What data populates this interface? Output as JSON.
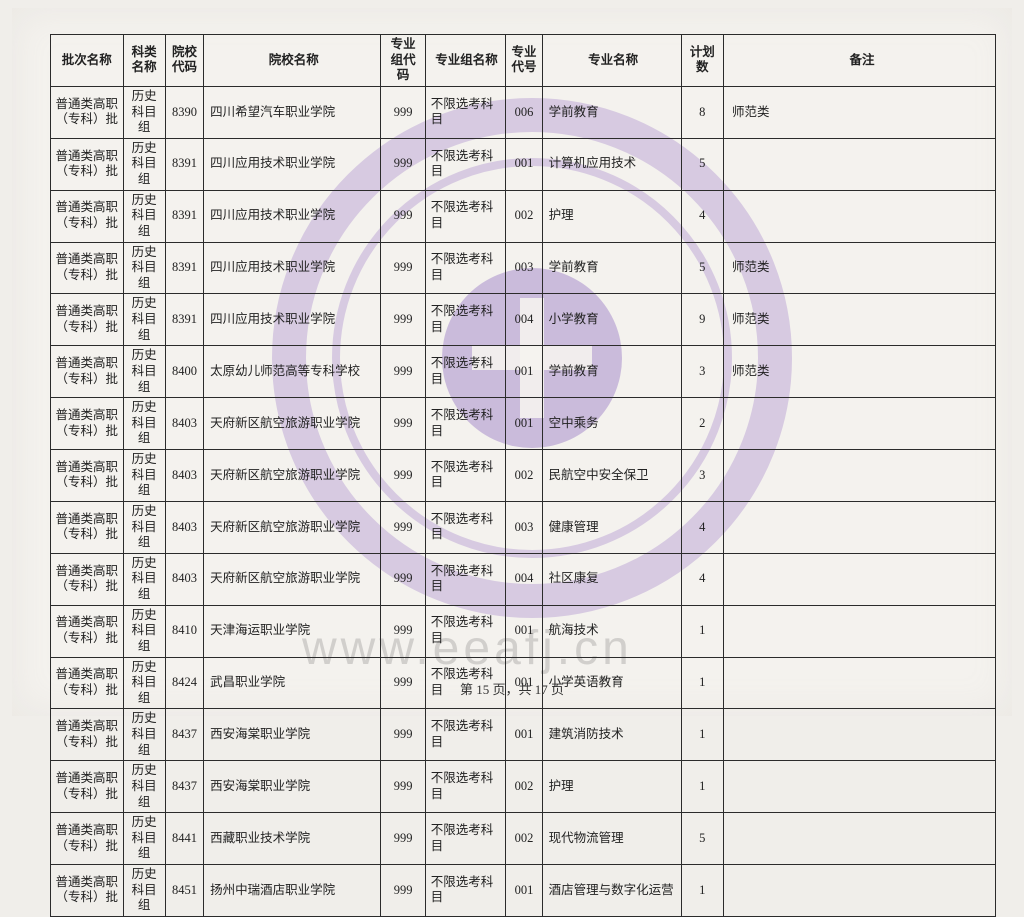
{
  "page": {
    "current": 15,
    "total": 17,
    "label_prefix": "第 ",
    "label_mid": " 页，共 ",
    "label_suffix": " 页"
  },
  "watermark": "www.eeafj.cn",
  "colors": {
    "border": "#2b2b2b",
    "text": "#222222",
    "paper": "#f4f2ee",
    "stamp": "#a082c8"
  },
  "headers": {
    "batch": "批次名称",
    "subject": "科类名称",
    "schcode": "院校代码",
    "schname": "院校名称",
    "grpcode": "专业组代码",
    "grpname": "专业组名称",
    "majcode": "专业代号",
    "majname": "专业名称",
    "plan": "计划数",
    "remark": "备注"
  },
  "rows": [
    {
      "batch": "普通类高职（专科）批",
      "subject": "历史科目组",
      "schcode": "8390",
      "schname": "四川希望汽车职业学院",
      "grpcode": "999",
      "grpname": "不限选考科目",
      "majcode": "006",
      "majname": "学前教育",
      "plan": "8",
      "remark": "师范类"
    },
    {
      "batch": "普通类高职（专科）批",
      "subject": "历史科目组",
      "schcode": "8391",
      "schname": "四川应用技术职业学院",
      "grpcode": "999",
      "grpname": "不限选考科目",
      "majcode": "001",
      "majname": "计算机应用技术",
      "plan": "5",
      "remark": ""
    },
    {
      "batch": "普通类高职（专科）批",
      "subject": "历史科目组",
      "schcode": "8391",
      "schname": "四川应用技术职业学院",
      "grpcode": "999",
      "grpname": "不限选考科目",
      "majcode": "002",
      "majname": "护理",
      "plan": "4",
      "remark": ""
    },
    {
      "batch": "普通类高职（专科）批",
      "subject": "历史科目组",
      "schcode": "8391",
      "schname": "四川应用技术职业学院",
      "grpcode": "999",
      "grpname": "不限选考科目",
      "majcode": "003",
      "majname": "学前教育",
      "plan": "5",
      "remark": "师范类"
    },
    {
      "batch": "普通类高职（专科）批",
      "subject": "历史科目组",
      "schcode": "8391",
      "schname": "四川应用技术职业学院",
      "grpcode": "999",
      "grpname": "不限选考科目",
      "majcode": "004",
      "majname": "小学教育",
      "plan": "9",
      "remark": "师范类"
    },
    {
      "batch": "普通类高职（专科）批",
      "subject": "历史科目组",
      "schcode": "8400",
      "schname": "太原幼儿师范高等专科学校",
      "grpcode": "999",
      "grpname": "不限选考科目",
      "majcode": "001",
      "majname": "学前教育",
      "plan": "3",
      "remark": "师范类"
    },
    {
      "batch": "普通类高职（专科）批",
      "subject": "历史科目组",
      "schcode": "8403",
      "schname": "天府新区航空旅游职业学院",
      "grpcode": "999",
      "grpname": "不限选考科目",
      "majcode": "001",
      "majname": "空中乘务",
      "plan": "2",
      "remark": ""
    },
    {
      "batch": "普通类高职（专科）批",
      "subject": "历史科目组",
      "schcode": "8403",
      "schname": "天府新区航空旅游职业学院",
      "grpcode": "999",
      "grpname": "不限选考科目",
      "majcode": "002",
      "majname": "民航空中安全保卫",
      "plan": "3",
      "remark": ""
    },
    {
      "batch": "普通类高职（专科）批",
      "subject": "历史科目组",
      "schcode": "8403",
      "schname": "天府新区航空旅游职业学院",
      "grpcode": "999",
      "grpname": "不限选考科目",
      "majcode": "003",
      "majname": "健康管理",
      "plan": "4",
      "remark": ""
    },
    {
      "batch": "普通类高职（专科）批",
      "subject": "历史科目组",
      "schcode": "8403",
      "schname": "天府新区航空旅游职业学院",
      "grpcode": "999",
      "grpname": "不限选考科目",
      "majcode": "004",
      "majname": "社区康复",
      "plan": "4",
      "remark": ""
    },
    {
      "batch": "普通类高职（专科）批",
      "subject": "历史科目组",
      "schcode": "8410",
      "schname": "天津海运职业学院",
      "grpcode": "999",
      "grpname": "不限选考科目",
      "majcode": "001",
      "majname": "航海技术",
      "plan": "1",
      "remark": ""
    },
    {
      "batch": "普通类高职（专科）批",
      "subject": "历史科目组",
      "schcode": "8424",
      "schname": "武昌职业学院",
      "grpcode": "999",
      "grpname": "不限选考科目",
      "majcode": "001",
      "majname": "小学英语教育",
      "plan": "1",
      "remark": ""
    },
    {
      "batch": "普通类高职（专科）批",
      "subject": "历史科目组",
      "schcode": "8437",
      "schname": "西安海棠职业学院",
      "grpcode": "999",
      "grpname": "不限选考科目",
      "majcode": "001",
      "majname": "建筑消防技术",
      "plan": "1",
      "remark": ""
    },
    {
      "batch": "普通类高职（专科）批",
      "subject": "历史科目组",
      "schcode": "8437",
      "schname": "西安海棠职业学院",
      "grpcode": "999",
      "grpname": "不限选考科目",
      "majcode": "002",
      "majname": "护理",
      "plan": "1",
      "remark": ""
    },
    {
      "batch": "普通类高职（专科）批",
      "subject": "历史科目组",
      "schcode": "8441",
      "schname": "西藏职业技术学院",
      "grpcode": "999",
      "grpname": "不限选考科目",
      "majcode": "002",
      "majname": "现代物流管理",
      "plan": "5",
      "remark": ""
    },
    {
      "batch": "普通类高职（专科）批",
      "subject": "历史科目组",
      "schcode": "8451",
      "schname": "扬州中瑞酒店职业学院",
      "grpcode": "999",
      "grpname": "不限选考科目",
      "majcode": "001",
      "majname": "酒店管理与数字化运营",
      "plan": "1",
      "remark": ""
    }
  ]
}
